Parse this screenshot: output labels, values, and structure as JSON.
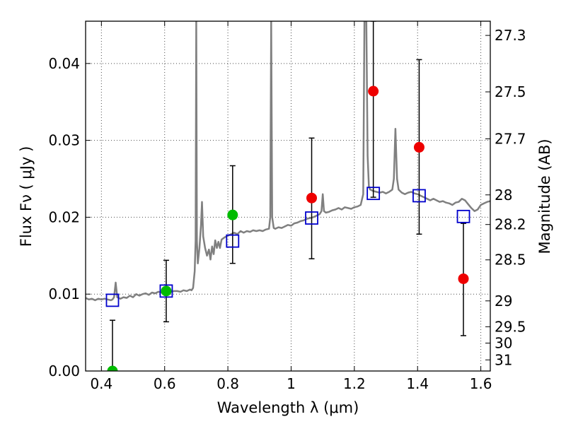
{
  "chart_data": {
    "type": "scatter",
    "xlabel": "Wavelength  λ (μm)",
    "ylabel": "Flux  Fν  ( μJy )",
    "ylabel_right": "Magnitude (AB)",
    "xlim": [
      0.35,
      1.63
    ],
    "ylim": [
      0.0,
      0.0455
    ],
    "grid": true,
    "x_ticks": [
      0.4,
      0.6,
      0.8,
      1.0,
      1.2,
      1.4,
      1.6
    ],
    "x_tick_labels": [
      "0.4",
      "0.6",
      "0.8",
      "1",
      "1.2",
      "1.4",
      "1.6"
    ],
    "y_ticks": [
      0.0,
      0.01,
      0.02,
      0.03,
      0.04
    ],
    "y_tick_labels": [
      "0.00",
      "0.01",
      "0.02",
      "0.03",
      "0.04"
    ],
    "magnitude_ticks": [
      27.3,
      27.5,
      27.7,
      28,
      28.2,
      28.5,
      29,
      29.5,
      30,
      31
    ],
    "magnitude_tick_labels": [
      "27.3",
      "27.5",
      "27.7",
      "28",
      "28.2",
      "28.5",
      "29",
      "29.5",
      "30",
      "31"
    ],
    "series": [
      {
        "kind": "spectrum",
        "color": "#808080",
        "points": [
          [
            0.35,
            0.0095
          ],
          [
            0.36,
            0.0093
          ],
          [
            0.37,
            0.0094
          ],
          [
            0.38,
            0.0092
          ],
          [
            0.39,
            0.0094
          ],
          [
            0.4,
            0.0093
          ],
          [
            0.41,
            0.0094
          ],
          [
            0.42,
            0.0093
          ],
          [
            0.43,
            0.0092
          ],
          [
            0.435,
            0.0093
          ],
          [
            0.44,
            0.0096
          ],
          [
            0.445,
            0.0115
          ],
          [
            0.45,
            0.0096
          ],
          [
            0.46,
            0.0094
          ],
          [
            0.47,
            0.0096
          ],
          [
            0.48,
            0.0095
          ],
          [
            0.49,
            0.0098
          ],
          [
            0.5,
            0.0096
          ],
          [
            0.51,
            0.01
          ],
          [
            0.52,
            0.0098
          ],
          [
            0.53,
            0.01
          ],
          [
            0.54,
            0.0101
          ],
          [
            0.55,
            0.0099
          ],
          [
            0.56,
            0.0102
          ],
          [
            0.57,
            0.0101
          ],
          [
            0.58,
            0.0103
          ],
          [
            0.59,
            0.0102
          ],
          [
            0.6,
            0.0103
          ],
          [
            0.61,
            0.0104
          ],
          [
            0.62,
            0.0103
          ],
          [
            0.63,
            0.0104
          ],
          [
            0.64,
            0.0104
          ],
          [
            0.65,
            0.0103
          ],
          [
            0.66,
            0.0105
          ],
          [
            0.67,
            0.0104
          ],
          [
            0.68,
            0.0106
          ],
          [
            0.685,
            0.0105
          ],
          [
            0.69,
            0.0108
          ],
          [
            0.695,
            0.013
          ],
          [
            0.698,
            0.017
          ],
          [
            0.7,
            0.0455
          ],
          [
            0.702,
            0.017
          ],
          [
            0.705,
            0.014
          ],
          [
            0.71,
            0.016
          ],
          [
            0.715,
            0.019
          ],
          [
            0.718,
            0.022
          ],
          [
            0.722,
            0.0175
          ],
          [
            0.728,
            0.016
          ],
          [
            0.734,
            0.015
          ],
          [
            0.74,
            0.0158
          ],
          [
            0.745,
            0.0145
          ],
          [
            0.75,
            0.0162
          ],
          [
            0.755,
            0.0152
          ],
          [
            0.76,
            0.017
          ],
          [
            0.765,
            0.016
          ],
          [
            0.77,
            0.0168
          ],
          [
            0.775,
            0.016
          ],
          [
            0.78,
            0.0171
          ],
          [
            0.79,
            0.0174
          ],
          [
            0.8,
            0.0176
          ],
          [
            0.81,
            0.0178
          ],
          [
            0.82,
            0.018
          ],
          [
            0.83,
            0.0178
          ],
          [
            0.84,
            0.0182
          ],
          [
            0.85,
            0.018
          ],
          [
            0.86,
            0.0182
          ],
          [
            0.87,
            0.0181
          ],
          [
            0.88,
            0.0183
          ],
          [
            0.89,
            0.0182
          ],
          [
            0.9,
            0.0183
          ],
          [
            0.91,
            0.0182
          ],
          [
            0.92,
            0.0184
          ],
          [
            0.93,
            0.0185
          ],
          [
            0.934,
            0.02
          ],
          [
            0.937,
            0.0455
          ],
          [
            0.94,
            0.02
          ],
          [
            0.945,
            0.0186
          ],
          [
            0.95,
            0.0185
          ],
          [
            0.96,
            0.0187
          ],
          [
            0.97,
            0.0186
          ],
          [
            0.98,
            0.0188
          ],
          [
            0.99,
            0.019
          ],
          [
            1.0,
            0.0189
          ],
          [
            1.01,
            0.0192
          ],
          [
            1.02,
            0.0193
          ],
          [
            1.03,
            0.0195
          ],
          [
            1.04,
            0.0196
          ],
          [
            1.05,
            0.0198
          ],
          [
            1.06,
            0.0199
          ],
          [
            1.07,
            0.02
          ],
          [
            1.08,
            0.0202
          ],
          [
            1.09,
            0.0204
          ],
          [
            1.096,
            0.0208
          ],
          [
            1.1,
            0.023
          ],
          [
            1.104,
            0.0208
          ],
          [
            1.11,
            0.0206
          ],
          [
            1.12,
            0.0207
          ],
          [
            1.13,
            0.0209
          ],
          [
            1.14,
            0.021
          ],
          [
            1.15,
            0.0212
          ],
          [
            1.16,
            0.021
          ],
          [
            1.17,
            0.0213
          ],
          [
            1.18,
            0.0212
          ],
          [
            1.19,
            0.0211
          ],
          [
            1.2,
            0.0213
          ],
          [
            1.21,
            0.0214
          ],
          [
            1.22,
            0.0216
          ],
          [
            1.228,
            0.023
          ],
          [
            1.232,
            0.0455
          ],
          [
            1.238,
            0.0455
          ],
          [
            1.242,
            0.028
          ],
          [
            1.246,
            0.024
          ],
          [
            1.25,
            0.0236
          ],
          [
            1.26,
            0.0234
          ],
          [
            1.27,
            0.0233
          ],
          [
            1.28,
            0.0232
          ],
          [
            1.29,
            0.0233
          ],
          [
            1.3,
            0.0231
          ],
          [
            1.31,
            0.0233
          ],
          [
            1.32,
            0.0236
          ],
          [
            1.325,
            0.025
          ],
          [
            1.33,
            0.0315
          ],
          [
            1.335,
            0.025
          ],
          [
            1.34,
            0.0236
          ],
          [
            1.35,
            0.0232
          ],
          [
            1.36,
            0.023
          ],
          [
            1.37,
            0.0232
          ],
          [
            1.38,
            0.0233
          ],
          [
            1.39,
            0.0231
          ],
          [
            1.4,
            0.023
          ],
          [
            1.41,
            0.0228
          ],
          [
            1.42,
            0.0226
          ],
          [
            1.43,
            0.0224
          ],
          [
            1.44,
            0.0222
          ],
          [
            1.45,
            0.0224
          ],
          [
            1.46,
            0.0222
          ],
          [
            1.47,
            0.022
          ],
          [
            1.48,
            0.0221
          ],
          [
            1.49,
            0.0219
          ],
          [
            1.5,
            0.0218
          ],
          [
            1.51,
            0.0216
          ],
          [
            1.52,
            0.0219
          ],
          [
            1.53,
            0.022
          ],
          [
            1.54,
            0.0224
          ],
          [
            1.55,
            0.0222
          ],
          [
            1.56,
            0.0217
          ],
          [
            1.57,
            0.0212
          ],
          [
            1.58,
            0.0208
          ],
          [
            1.59,
            0.021
          ],
          [
            1.6,
            0.0216
          ],
          [
            1.61,
            0.0218
          ],
          [
            1.62,
            0.022
          ],
          [
            1.63,
            0.0221
          ]
        ]
      },
      {
        "kind": "model_boxes",
        "color": "#0000cc",
        "points": [
          {
            "x": 0.435,
            "y": 0.0092
          },
          {
            "x": 0.605,
            "y": 0.0104
          },
          {
            "x": 0.815,
            "y": 0.0169
          },
          {
            "x": 1.065,
            "y": 0.0199
          },
          {
            "x": 1.26,
            "y": 0.0231
          },
          {
            "x": 1.405,
            "y": 0.0228
          },
          {
            "x": 1.545,
            "y": 0.0201
          }
        ]
      },
      {
        "kind": "observed_points",
        "points": [
          {
            "x": 0.435,
            "y": 0.0,
            "err_low": 0.0,
            "err_high": 0.0066,
            "color": "#00bb00"
          },
          {
            "x": 0.605,
            "y": 0.0104,
            "err_low": 0.0064,
            "err_high": 0.0144,
            "color": "#00bb00"
          },
          {
            "x": 0.815,
            "y": 0.0203,
            "err_low": 0.014,
            "err_high": 0.0267,
            "color": "#00bb00"
          },
          {
            "x": 1.065,
            "y": 0.0225,
            "err_low": 0.0146,
            "err_high": 0.0303,
            "color": "#ee0000"
          },
          {
            "x": 1.26,
            "y": 0.0364,
            "err_low": 0.0226,
            "err_high": 0.0455,
            "color": "#ee0000"
          },
          {
            "x": 1.405,
            "y": 0.0291,
            "err_low": 0.0178,
            "err_high": 0.0405,
            "color": "#ee0000"
          },
          {
            "x": 1.545,
            "y": 0.012,
            "err_low": 0.0046,
            "err_high": 0.0192,
            "color": "#ee0000"
          }
        ]
      }
    ]
  }
}
